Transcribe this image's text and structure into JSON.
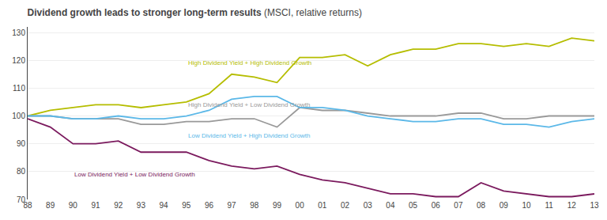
{
  "chart_data": {
    "type": "line",
    "title": "Dividend growth leads to stronger long-term results",
    "subtitle": "(MSCI, relative returns)",
    "categories": [
      "88",
      "89",
      "90",
      "91",
      "92",
      "93",
      "94",
      "95",
      "96",
      "97",
      "98",
      "99",
      "00",
      "01",
      "02",
      "03",
      "04",
      "05",
      "06",
      "07",
      "08",
      "09",
      "10",
      "11",
      "12",
      "13"
    ],
    "series": [
      {
        "name": "High Dividend Yield + High Dividend Growth",
        "color": "#b5bd00",
        "values": [
          100,
          102,
          103,
          104,
          104,
          103,
          104,
          105,
          108,
          115,
          114,
          112,
          121,
          121,
          122,
          118,
          122,
          124,
          124,
          126,
          126,
          125,
          126,
          125,
          128,
          127
        ]
      },
      {
        "name": "High Dividend Yield + Low Dividend Growth",
        "color": "#999999",
        "values": [
          100,
          100,
          99,
          99,
          99,
          97,
          97,
          98,
          98,
          99,
          99,
          96,
          103,
          102,
          102,
          101,
          100,
          100,
          100,
          101,
          101,
          99,
          99,
          100,
          100,
          100
        ]
      },
      {
        "name": "Low Dividend Yield + High Dividend Growth",
        "color": "#5bb8e8",
        "values": [
          100,
          100,
          99,
          99,
          100,
          99,
          99,
          100,
          102,
          106,
          107,
          107,
          103,
          103,
          102,
          100,
          99,
          98,
          98,
          99,
          99,
          97,
          97,
          96,
          98,
          99
        ]
      },
      {
        "name": "Low Dividend Yield + Low Dividend Growth",
        "color": "#7b1a5e",
        "values": [
          99,
          96,
          90,
          90,
          91,
          87,
          87,
          87,
          84,
          82,
          81,
          82,
          79,
          77,
          76,
          74,
          72,
          72,
          71,
          71,
          76,
          73,
          72,
          71,
          71,
          72
        ]
      }
    ],
    "annotations": [
      {
        "text": "High Dividend Yield + High Dividend Growth",
        "x": "07",
        "y": 119,
        "color": "#b5bd00"
      },
      {
        "text": "High Dividend Yield + Low Dividend Growth",
        "x": "07",
        "y": 104,
        "color": "#999999"
      },
      {
        "text": "Low Dividend Yield + High Dividend Growth",
        "x": "07",
        "y": 93,
        "color": "#5bb8e8"
      },
      {
        "text": "Low Dividend Yield + Low Dividend Growth",
        "x": "02",
        "y": 79,
        "color": "#7b1a5e"
      }
    ],
    "ylim": [
      70,
      132
    ],
    "yticks": [
      70,
      80,
      90,
      100,
      110,
      120,
      130
    ],
    "grid": true
  }
}
